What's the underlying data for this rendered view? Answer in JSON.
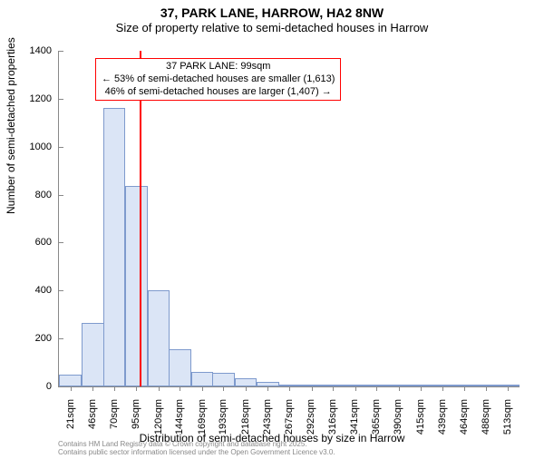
{
  "titles": {
    "main": "37, PARK LANE, HARROW, HA2 8NW",
    "sub": "Size of property relative to semi-detached houses in Harrow"
  },
  "axes": {
    "ylabel": "Number of semi-detached properties",
    "xlabel": "Distribution of semi-detached houses by size in Harrow",
    "ylim": [
      0,
      1400
    ],
    "ytick_step": 200,
    "yticks": [
      0,
      200,
      400,
      600,
      800,
      1000,
      1200,
      1400
    ],
    "xticks": [
      21,
      46,
      70,
      95,
      120,
      144,
      169,
      193,
      218,
      243,
      267,
      292,
      316,
      341,
      365,
      390,
      415,
      439,
      464,
      488,
      513
    ],
    "xtick_suffix": "sqm"
  },
  "chart": {
    "type": "histogram",
    "xlim": [
      8,
      526
    ],
    "bar_fill": "#dbe5f6",
    "bar_border": "#7e9acd",
    "background_color": "#ffffff",
    "axis_color": "#888888",
    "values": [
      50,
      265,
      1160,
      835,
      400,
      155,
      60,
      55,
      35,
      20,
      5,
      3,
      3,
      2,
      2,
      2,
      2,
      2,
      2,
      2,
      2
    ]
  },
  "marker": {
    "x": 99,
    "color": "#ff0000"
  },
  "annotation": {
    "border_color": "#ff0000",
    "bg_color": "#ffffff",
    "line1": "37 PARK LANE: 99sqm",
    "line2": "← 53% of semi-detached houses are smaller (1,613)",
    "line3": "46% of semi-detached houses are larger (1,407) →"
  },
  "attribution": {
    "line1": "Contains HM Land Registry data © Crown copyright and database right 2025.",
    "line2": "Contains public sector information licensed under the Open Government Licence v3.0."
  },
  "fonts": {
    "title_size": 14,
    "subtitle_size": 13,
    "axis_label_size": 12,
    "tick_size": 11,
    "annotation_size": 11,
    "attrib_size": 8
  }
}
